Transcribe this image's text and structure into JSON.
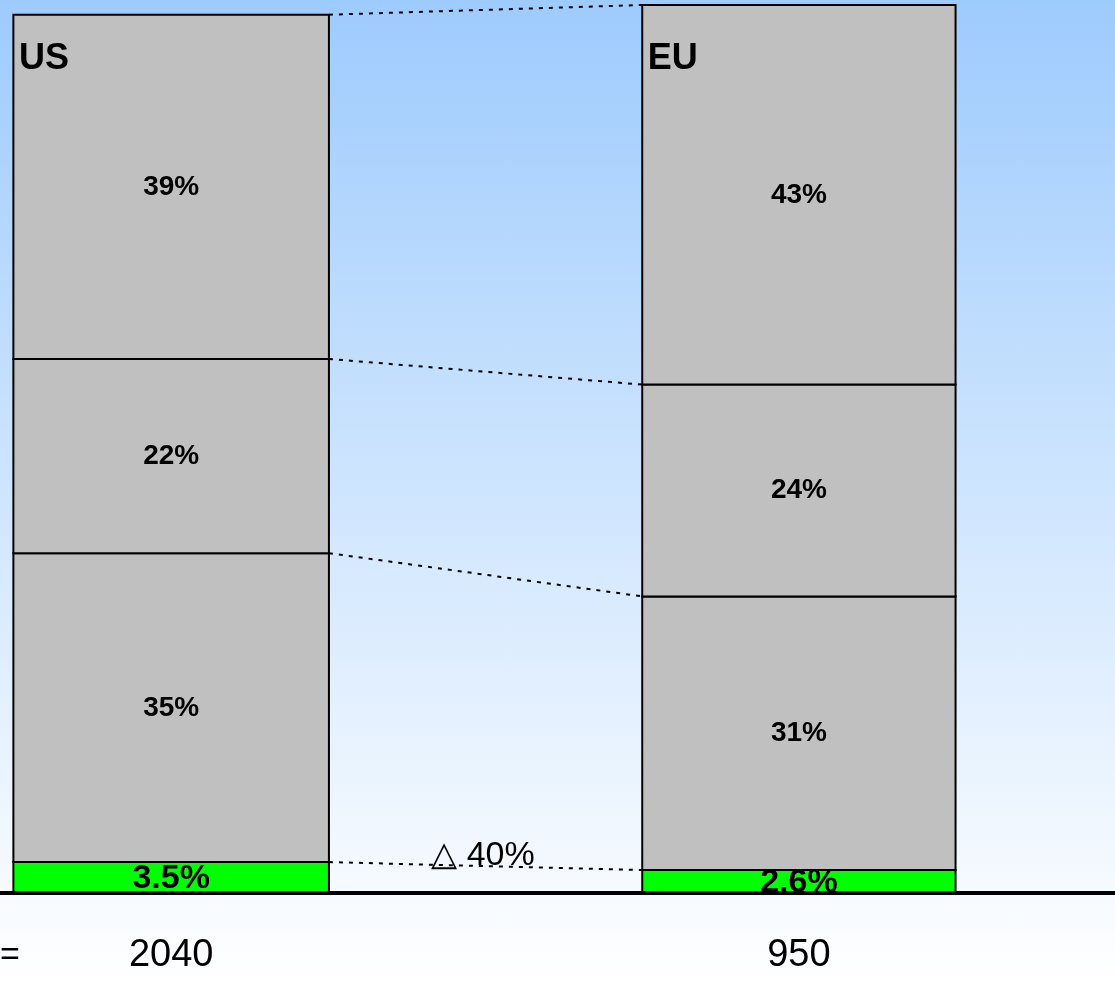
{
  "chart_data": {
    "type": "bar",
    "stacked": true,
    "categories": [
      "US",
      "EU"
    ],
    "series": [
      {
        "color": "#00ff00",
        "values": [
          3.5,
          2.6
        ],
        "value_labels": [
          "3.5%",
          "2.6%"
        ]
      },
      {
        "color": "#c0c0c0",
        "values": [
          35,
          31
        ],
        "value_labels": [
          "35%",
          "31%"
        ]
      },
      {
        "color": "#c0c0c0",
        "values": [
          22,
          24
        ],
        "value_labels": [
          "22%",
          "24%"
        ]
      },
      {
        "color": "#c0c0c0",
        "values": [
          39,
          43
        ],
        "value_labels": [
          "39%",
          "43%"
        ]
      }
    ],
    "annotations": [
      "△ 40%",
      "=",
      "2040",
      "950"
    ]
  }
}
